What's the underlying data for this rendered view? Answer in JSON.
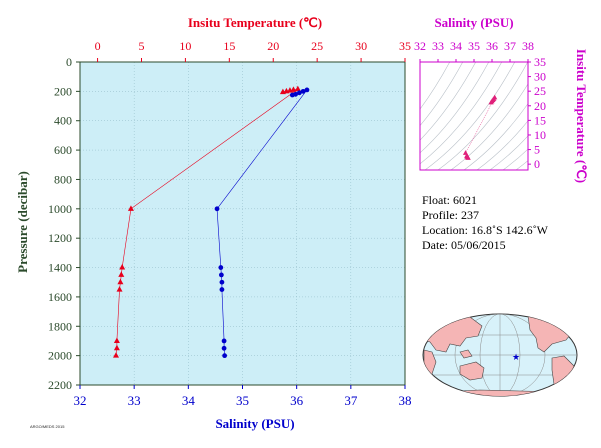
{
  "chart_data": [
    {
      "type": "scatter",
      "title": "",
      "x_axis_top": {
        "label": "Insitu Temperature (℃)",
        "range": [
          -2,
          35
        ],
        "ticks": [
          0,
          5,
          10,
          15,
          20,
          25,
          30,
          35
        ],
        "color": "#e8001c"
      },
      "x_axis_bottom": {
        "label": "Salinity (PSU)",
        "range": [
          32,
          38
        ],
        "ticks": [
          32,
          33,
          34,
          35,
          36,
          37,
          38
        ],
        "color": "#0000cc"
      },
      "y_axis": {
        "label": "Pressure (decibar)",
        "range": [
          0,
          2200
        ],
        "reversed": true,
        "ticks": [
          0,
          200,
          400,
          600,
          800,
          1000,
          1200,
          1400,
          1600,
          1800,
          2000,
          2200
        ],
        "color": "#2b4a2b"
      },
      "background": "#cdeef7",
      "grid": true,
      "series": [
        {
          "variable": "temperature",
          "color": "#e8001c",
          "marker": "triangle",
          "points": [
            {
              "x": 21.1,
              "y": 205
            },
            {
              "x": 21.5,
              "y": 200
            },
            {
              "x": 21.9,
              "y": 195
            },
            {
              "x": 22.3,
              "y": 190
            },
            {
              "x": 22.8,
              "y": 185
            },
            {
              "x": 3.8,
              "y": 1000
            },
            {
              "x": 2.8,
              "y": 1400
            },
            {
              "x": 2.7,
              "y": 1450
            },
            {
              "x": 2.6,
              "y": 1500
            },
            {
              "x": 2.5,
              "y": 1550
            },
            {
              "x": 2.2,
              "y": 1900
            },
            {
              "x": 2.2,
              "y": 1950
            },
            {
              "x": 2.1,
              "y": 2000
            }
          ]
        },
        {
          "variable": "salinity",
          "color": "#0000cc",
          "marker": "circle",
          "points": [
            {
              "x": 35.92,
              "y": 225
            },
            {
              "x": 35.98,
              "y": 220
            },
            {
              "x": 36.05,
              "y": 210
            },
            {
              "x": 36.12,
              "y": 200
            },
            {
              "x": 36.19,
              "y": 190
            },
            {
              "x": 34.53,
              "y": 1000
            },
            {
              "x": 34.6,
              "y": 1400
            },
            {
              "x": 34.61,
              "y": 1450
            },
            {
              "x": 34.62,
              "y": 1500
            },
            {
              "x": 34.62,
              "y": 1550
            },
            {
              "x": 34.66,
              "y": 1900
            },
            {
              "x": 34.66,
              "y": 1950
            },
            {
              "x": 34.67,
              "y": 2000
            }
          ]
        }
      ]
    },
    {
      "type": "scatter",
      "title": "",
      "x_axis": {
        "label": "Salinity (PSU)",
        "range": [
          32,
          38
        ],
        "ticks": [
          32,
          33,
          34,
          35,
          36,
          37,
          38
        ],
        "color": "#cc00cc"
      },
      "y_axis": {
        "label": "Insitu Temperature (℃)",
        "range": [
          -2,
          35
        ],
        "ticks": [
          0,
          5,
          10,
          15,
          20,
          25,
          30,
          35
        ],
        "color": "#cc00cc"
      },
      "density_contours": true,
      "series": [
        {
          "color": "#e0207a",
          "marker": "triangle",
          "points": [
            {
              "x": 35.95,
              "y": 21.1
            },
            {
              "x": 36.0,
              "y": 21.5
            },
            {
              "x": 36.05,
              "y": 21.9
            },
            {
              "x": 36.1,
              "y": 22.3
            },
            {
              "x": 36.15,
              "y": 22.8
            },
            {
              "x": 34.53,
              "y": 3.8
            },
            {
              "x": 34.6,
              "y": 2.8
            },
            {
              "x": 34.61,
              "y": 2.7
            },
            {
              "x": 34.62,
              "y": 2.6
            },
            {
              "x": 34.62,
              "y": 2.5
            },
            {
              "x": 34.66,
              "y": 2.2
            },
            {
              "x": 34.66,
              "y": 2.2
            },
            {
              "x": 34.67,
              "y": 2.1
            }
          ]
        }
      ]
    }
  ],
  "float_info": {
    "float": "Float:  6021",
    "profile": "Profile:  237",
    "location": "Location:  16.8˚S  142.6˚W",
    "date": "Date:  05/06/2015"
  },
  "map": {
    "marker": "★",
    "marker_color": "#0000cc",
    "land_color": "#f5b5b5",
    "ocean_color": "#d8f2fa"
  },
  "footer_text": "ARGO/MEDS 2015"
}
